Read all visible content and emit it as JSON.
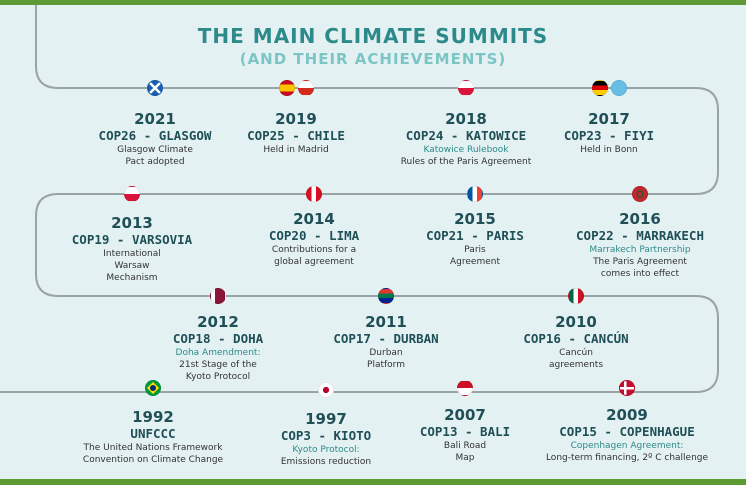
{
  "title": "THE MAIN CLIMATE SUMMITS",
  "subtitle": "(AND THEIR ACHIEVEMENTS)",
  "summits": [
    {
      "year": "2021",
      "name": "COP26 - GLASGOW",
      "highlight": "",
      "desc": "Glasgow Climate\nPact adopted",
      "flags": [
        "scotland-flag"
      ]
    },
    {
      "year": "2019",
      "name": "COP25 - CHILE",
      "highlight": "",
      "desc": "Held in Madrid",
      "flags": [
        "spain-flag",
        "chile-flag"
      ]
    },
    {
      "year": "2018",
      "name": "COP24 - KATOWICE",
      "highlight": "Katowice Rulebook",
      "desc": "Rules of the Paris Agreement",
      "flags": [
        "poland-flag"
      ]
    },
    {
      "year": "2017",
      "name": "COP23 - FIYI",
      "highlight": "",
      "desc": "Held in Bonn",
      "flags": [
        "germany-flag",
        "fiji-flag"
      ]
    },
    {
      "year": "2013",
      "name": "COP19 - VARSOVIA",
      "highlight": "",
      "desc": "International\nWarsaw\nMechanism",
      "flags": [
        "poland-flag"
      ]
    },
    {
      "year": "2014",
      "name": "COP20 - LIMA",
      "highlight": "",
      "desc": "Contributions for a\nglobal agreement",
      "flags": [
        "peru-flag"
      ]
    },
    {
      "year": "2015",
      "name": "COP21 - PARIS",
      "highlight": "",
      "desc": "Paris\nAgreement",
      "flags": [
        "france-flag"
      ]
    },
    {
      "year": "2016",
      "name": "COP22 - MARRAKECH",
      "highlight": "Marrakech Partnership",
      "desc": "The Paris Agreement\ncomes into effect",
      "flags": [
        "morocco-flag"
      ]
    },
    {
      "year": "2012",
      "name": "COP18 - DOHA",
      "highlight": "Doha Amendment:",
      "desc": "21st Stage of the\nKyoto Protocol",
      "flags": [
        "qatar-flag"
      ]
    },
    {
      "year": "2011",
      "name": "COP17 - DURBAN",
      "highlight": "",
      "desc": "Durban\nPlatform",
      "flags": [
        "south-africa-flag"
      ]
    },
    {
      "year": "2010",
      "name": "COP16 - CANCÚN",
      "highlight": "",
      "desc": "Cancún\nagreements",
      "flags": [
        "mexico-flag"
      ]
    },
    {
      "year": "1992",
      "name": "UNFCCC",
      "highlight": "",
      "desc": "The United Nations Framework\nConvention on Climate Change",
      "flags": [
        "brazil-flag"
      ]
    },
    {
      "year": "1997",
      "name": "COP3 - KIOTO",
      "highlight": "Kyoto Protocol:",
      "desc": "Emissions reduction",
      "flags": [
        "japan-flag"
      ]
    },
    {
      "year": "2007",
      "name": "COP13 - BALI",
      "highlight": "",
      "desc": "Bali Road\nMap",
      "flags": [
        "indonesia-flag"
      ]
    },
    {
      "year": "2009",
      "name": "COP15 - COPENHAGUE",
      "highlight": "Copenhagen Agreement:",
      "desc": "Long-term financing, 2º C challenge",
      "flags": [
        "denmark-flag"
      ]
    }
  ],
  "colors": {
    "accent": "#2d8a8a",
    "subtitle": "#7cc5c5",
    "text": "#1f4f57",
    "bar": "#5e9a34",
    "background": "#e4f1f2",
    "path": "#9aa3a6"
  }
}
